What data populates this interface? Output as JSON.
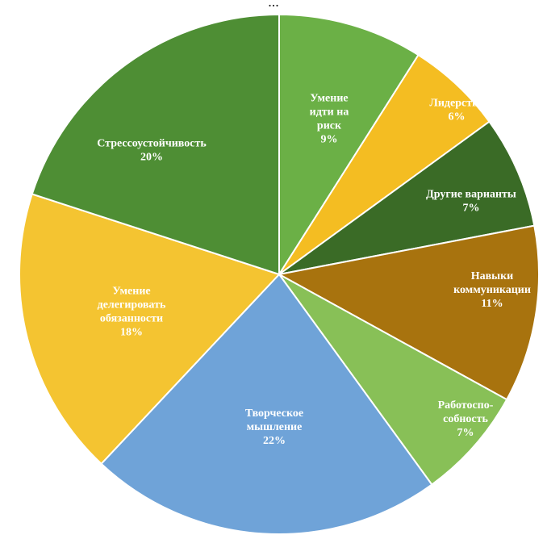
{
  "top_text": "...",
  "chart_data": {
    "type": "pie",
    "slices": [
      {
        "lines": [
          "Умение",
          "идти на",
          "риск"
        ],
        "value": 9,
        "pct": "9%",
        "color": "#6bb046",
        "text_color": "#ffffff"
      },
      {
        "lines": [
          "Лидерство"
        ],
        "value": 6,
        "pct": "6%",
        "color": "#f4bd22",
        "text_color": "#ffffff"
      },
      {
        "lines": [
          "Другие варианты"
        ],
        "value": 7,
        "pct": "7%",
        "color": "#3a6b26",
        "text_color": "#ffffff"
      },
      {
        "lines": [
          "Навыки",
          "коммуникации"
        ],
        "value": 11,
        "pct": "11%",
        "color": "#a8730e",
        "text_color": "#ffffff"
      },
      {
        "lines": [
          "Работоспо-",
          "собность"
        ],
        "value": 7,
        "pct": "7%",
        "color": "#88c057",
        "text_color": "#ffffff"
      },
      {
        "lines": [
          "Творческое",
          "мышление"
        ],
        "value": 22,
        "pct": "22%",
        "color": "#6fa3d8",
        "text_color": "#ffffff"
      },
      {
        "lines": [
          "Умение",
          "делегировать",
          "обязанности"
        ],
        "value": 18,
        "pct": "18%",
        "color": "#f4c431",
        "text_color": "#ffffff"
      },
      {
        "lines": [
          "Стрессоустойчивость"
        ],
        "value": 20,
        "pct": "20%",
        "color": "#4e8e34",
        "text_color": "#ffffff"
      }
    ]
  }
}
